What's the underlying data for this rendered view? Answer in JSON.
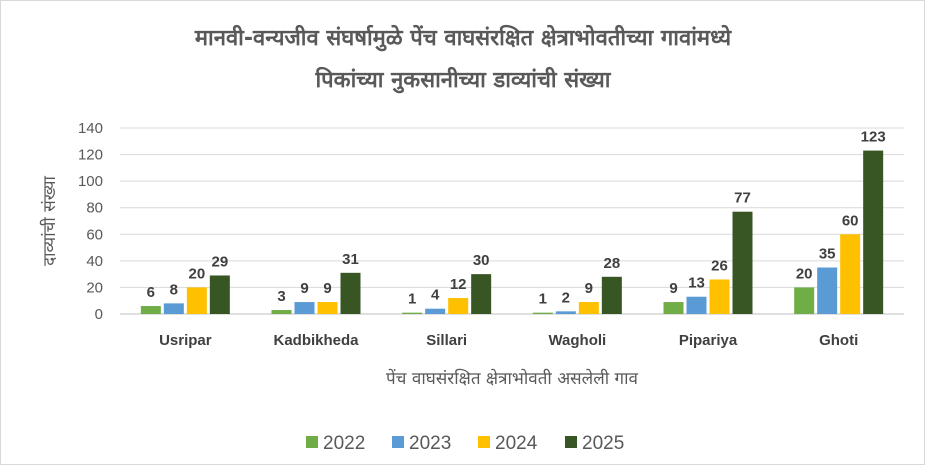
{
  "chart_data": {
    "type": "bar",
    "title": [
      "मानवी-वन्यजीव संघर्षामुळे पेंच वाघसंरक्षित क्षेत्राभोवतीच्या गावांमध्ये",
      "पिकांच्या नुकसानीच्या डाव्यांची संख्या"
    ],
    "xlabel": "पेंच वाघसंरक्षित क्षेत्राभोवती असलेली गाव",
    "ylabel": "दाव्यांची संख्या",
    "ylim": [
      0,
      140
    ],
    "yticks": [
      0,
      20,
      40,
      60,
      80,
      100,
      120,
      140
    ],
    "categories": [
      "Usripar",
      "Kadbikheda",
      "Sillari",
      "Wagholi",
      "Pipariya",
      "Ghoti"
    ],
    "series": [
      {
        "name": "2022",
        "color": "#70ad47",
        "values": [
          6,
          3,
          1,
          1,
          9,
          20
        ]
      },
      {
        "name": "2023",
        "color": "#5b9bd5",
        "values": [
          8,
          9,
          4,
          2,
          13,
          35
        ]
      },
      {
        "name": "2024",
        "color": "#ffc000",
        "values": [
          20,
          9,
          12,
          9,
          26,
          60
        ]
      },
      {
        "name": "2025",
        "color": "#375623",
        "values": [
          29,
          31,
          30,
          28,
          77,
          123
        ]
      }
    ],
    "grid": true,
    "legend": "bottom"
  }
}
